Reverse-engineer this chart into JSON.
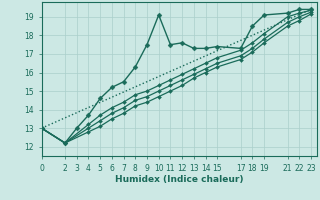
{
  "xlabel": "Humidex (Indice chaleur)",
  "bg_color": "#cce8e4",
  "grid_color": "#aacfcb",
  "line_color": "#1a6b5a",
  "xlim": [
    0,
    23.5
  ],
  "ylim": [
    11.5,
    19.8
  ],
  "xticks": [
    0,
    2,
    3,
    4,
    5,
    6,
    7,
    8,
    9,
    10,
    11,
    12,
    13,
    14,
    15,
    17,
    18,
    19,
    21,
    22,
    23
  ],
  "yticks": [
    12,
    13,
    14,
    15,
    16,
    17,
    18,
    19
  ],
  "lines": [
    {
      "x": [
        0,
        23
      ],
      "y": [
        13.0,
        19.4
      ],
      "style": ":",
      "marker": "None",
      "markersize": 0,
      "linewidth": 1.0
    },
    {
      "x": [
        0,
        2,
        3,
        4,
        5,
        6,
        7,
        8,
        9,
        10,
        11,
        12,
        13,
        14,
        15,
        17,
        18,
        19,
        21,
        22,
        23
      ],
      "y": [
        13.0,
        12.2,
        13.0,
        13.7,
        14.6,
        15.2,
        15.5,
        16.3,
        17.5,
        19.1,
        17.5,
        17.6,
        17.3,
        17.3,
        17.4,
        17.3,
        18.5,
        19.1,
        19.2,
        19.4,
        19.4
      ],
      "style": "-",
      "marker": "D",
      "markersize": 2.5,
      "linewidth": 1.0
    },
    {
      "x": [
        0,
        2,
        4,
        5,
        6,
        7,
        8,
        9,
        10,
        11,
        12,
        13,
        14,
        15,
        17,
        18,
        19,
        21,
        22,
        23
      ],
      "y": [
        13.0,
        12.2,
        13.2,
        13.7,
        14.1,
        14.4,
        14.8,
        15.0,
        15.3,
        15.6,
        15.9,
        16.2,
        16.5,
        16.8,
        17.2,
        17.6,
        18.1,
        19.0,
        19.2,
        19.35
      ],
      "style": "-",
      "marker": "D",
      "markersize": 2.0,
      "linewidth": 0.9
    },
    {
      "x": [
        0,
        2,
        4,
        5,
        6,
        7,
        8,
        9,
        10,
        11,
        12,
        13,
        14,
        15,
        17,
        18,
        19,
        21,
        22,
        23
      ],
      "y": [
        13.0,
        12.2,
        13.0,
        13.4,
        13.8,
        14.1,
        14.5,
        14.7,
        15.0,
        15.3,
        15.6,
        15.9,
        16.2,
        16.5,
        16.9,
        17.3,
        17.8,
        18.7,
        19.0,
        19.25
      ],
      "style": "-",
      "marker": "D",
      "markersize": 2.0,
      "linewidth": 0.9
    },
    {
      "x": [
        0,
        2,
        4,
        5,
        6,
        7,
        8,
        9,
        10,
        11,
        12,
        13,
        14,
        15,
        17,
        18,
        19,
        21,
        22,
        23
      ],
      "y": [
        13.0,
        12.2,
        12.8,
        13.1,
        13.5,
        13.8,
        14.2,
        14.4,
        14.7,
        15.0,
        15.3,
        15.7,
        16.0,
        16.3,
        16.7,
        17.1,
        17.6,
        18.5,
        18.8,
        19.15
      ],
      "style": "-",
      "marker": "D",
      "markersize": 2.0,
      "linewidth": 0.9
    }
  ]
}
